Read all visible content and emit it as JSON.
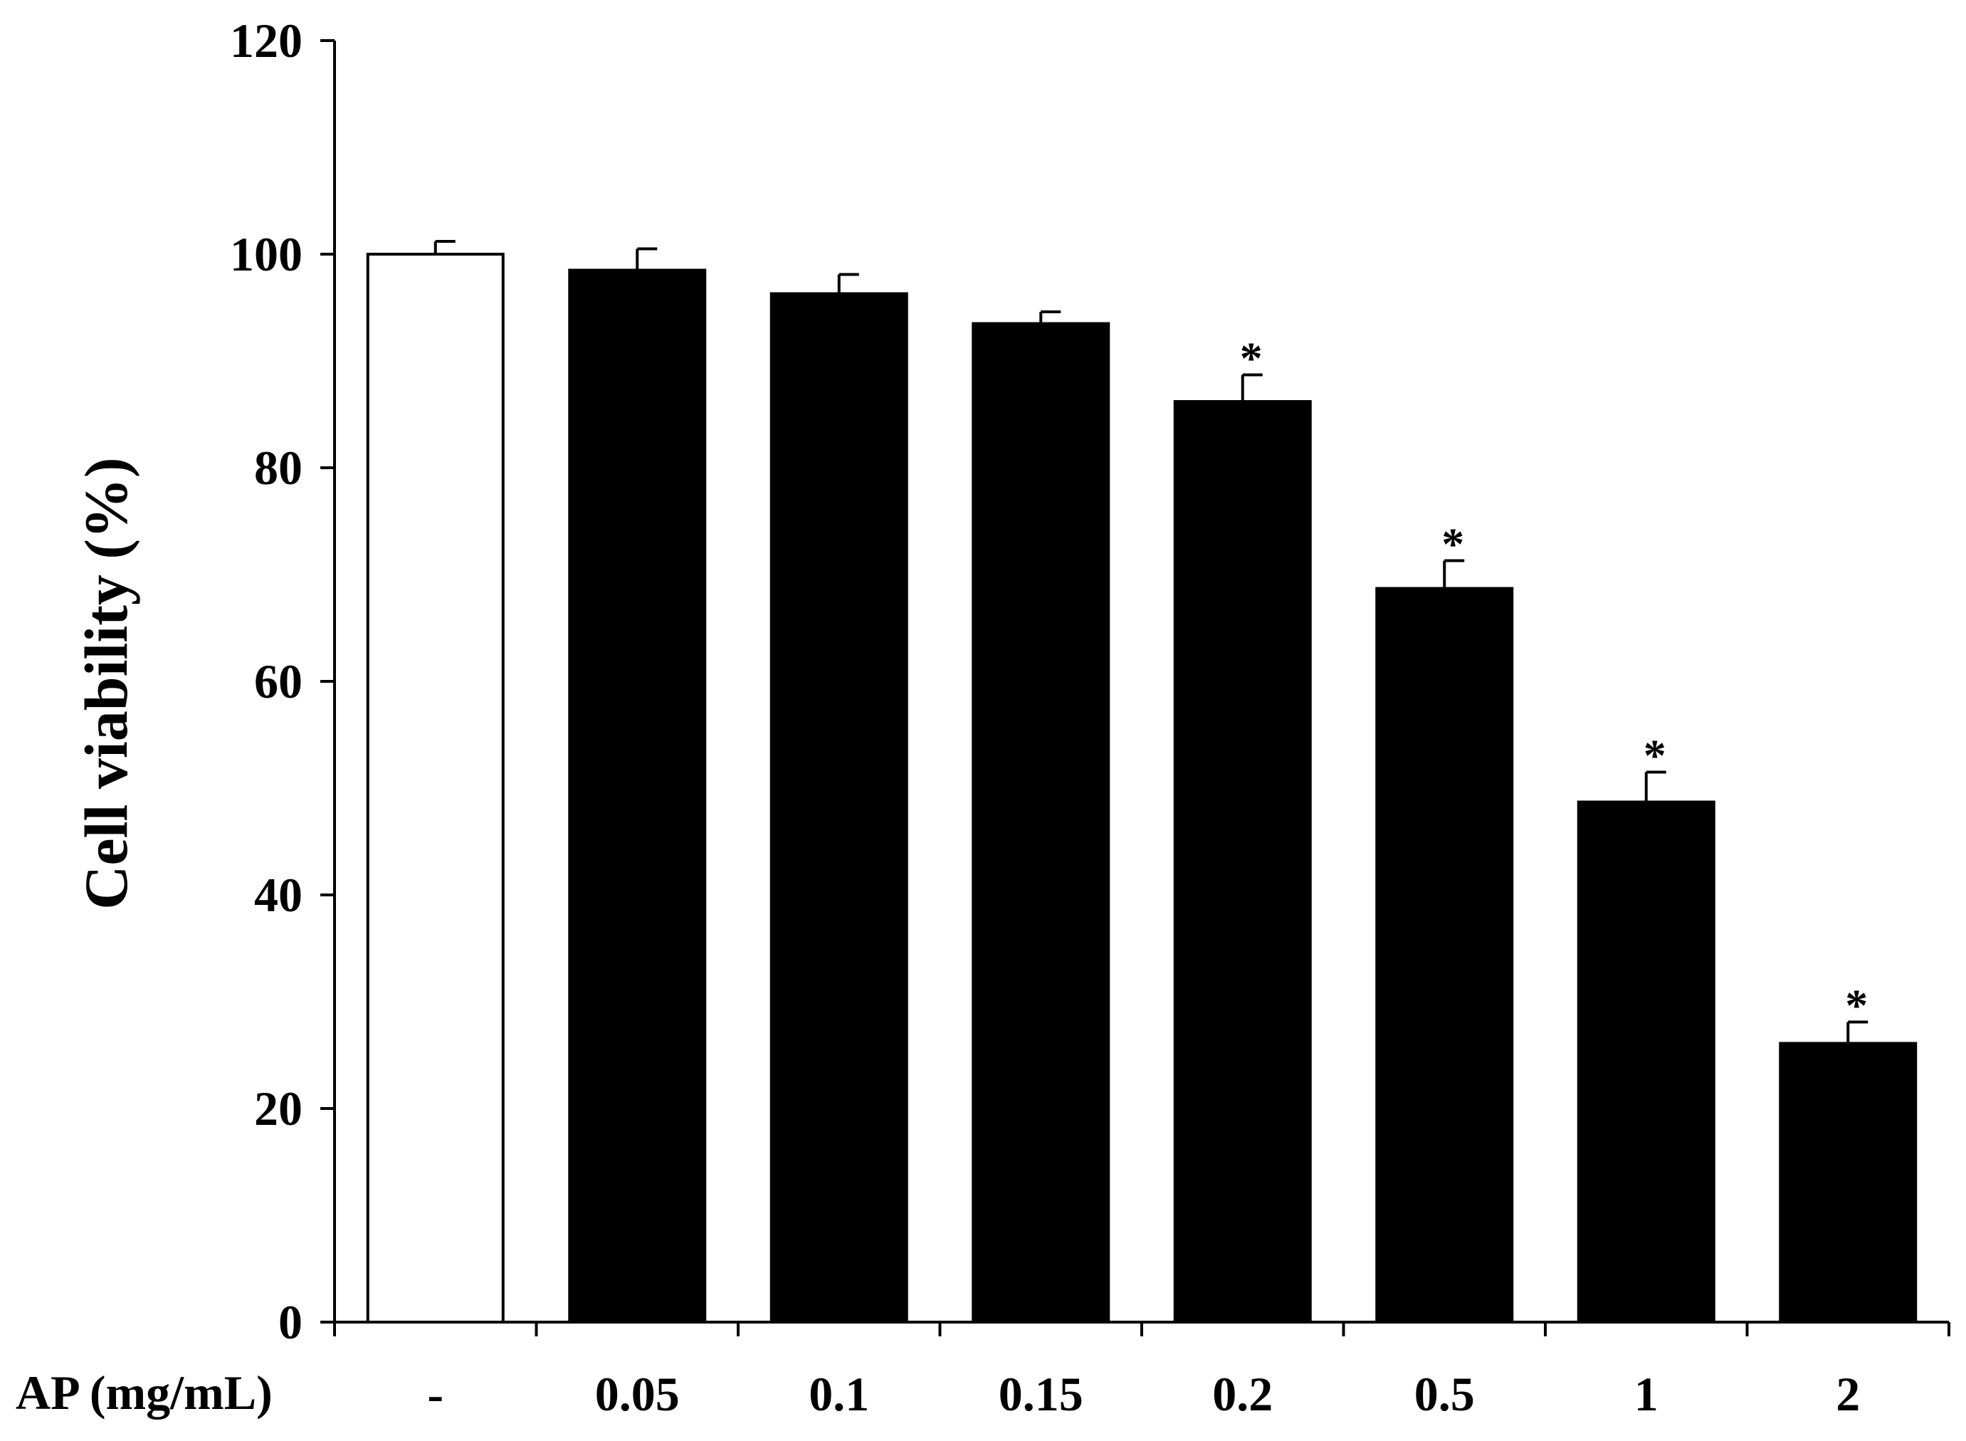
{
  "chart_data": {
    "type": "bar",
    "x_prefix_label": "AP (mg/mL)",
    "ylabel": "Cell viability (%)",
    "ylim": [
      0,
      120
    ],
    "yticks": [
      "0",
      "20",
      "40",
      "60",
      "80",
      "100",
      "120"
    ],
    "categories": [
      "-",
      "0.05",
      "0.1",
      "0.15",
      "0.2",
      "0.5",
      "1",
      "2"
    ],
    "values": [
      100,
      98.5,
      96.3,
      93.5,
      86.2,
      68.7,
      48.7,
      26.1
    ],
    "errors": [
      1.2,
      2.0,
      1.8,
      1.1,
      2.5,
      2.6,
      2.8,
      2.0
    ],
    "significance": [
      "",
      "",
      "",
      "",
      "*",
      "*",
      "*",
      "*"
    ],
    "bar_fill": [
      "#ffffff",
      "#000000",
      "#000000",
      "#000000",
      "#000000",
      "#000000",
      "#000000",
      "#000000"
    ],
    "grid": false,
    "legend": "none"
  }
}
